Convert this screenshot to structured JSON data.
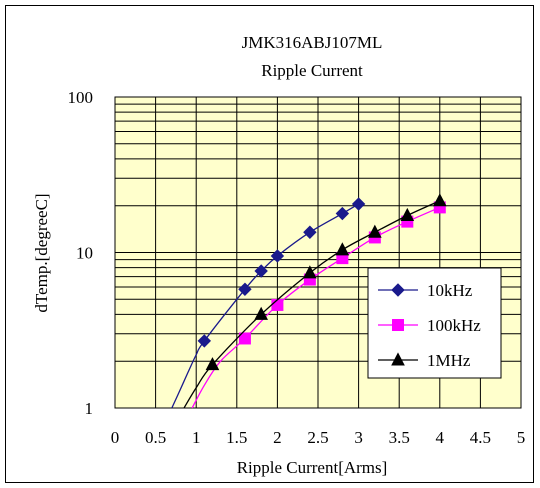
{
  "chart_data": {
    "type": "line",
    "title": "JMK316ABJ107ML",
    "subtitle": "Ripple Current",
    "xlabel": "Ripple Current[Arms]",
    "ylabel": "dTemp.[degreeC]",
    "xlim": [
      0,
      5
    ],
    "ylim": [
      1,
      100
    ],
    "yscale": "log",
    "x_ticks": [
      "0",
      "0.5",
      "1",
      "1.5",
      "2",
      "2.5",
      "3",
      "3.5",
      "4",
      "4.5",
      "5"
    ],
    "y_ticks": [
      "1",
      "10",
      "100"
    ],
    "grid": true,
    "legend_position": "lower-right",
    "plot_background": "#ffffcc",
    "series": [
      {
        "name": "10kHz",
        "marker": "diamond",
        "color": "#1a1a8c",
        "marker_color": "#1a1a8c",
        "line_color": "#1a1a8c",
        "x": [
          1.1,
          1.6,
          1.8,
          2.0,
          2.4,
          2.8,
          3.0
        ],
        "y": [
          2.7,
          5.8,
          7.6,
          9.5,
          13.5,
          17.8,
          20.5
        ],
        "curve_x": [
          0.7,
          0.8,
          0.9,
          1.0,
          1.1
        ],
        "curve_y": [
          1.0,
          1.3,
          1.7,
          2.2,
          2.7
        ]
      },
      {
        "name": "100kHz",
        "marker": "square",
        "color": "#ff00ff",
        "marker_color": "#ff00ff",
        "line_color": "#ff00ff",
        "x": [
          1.6,
          2.0,
          2.4,
          2.8,
          3.2,
          3.6,
          4.0
        ],
        "y": [
          2.8,
          4.6,
          6.7,
          9.2,
          12.5,
          15.8,
          19.5
        ],
        "curve_x": [
          0.95,
          1.1,
          1.3,
          1.6
        ],
        "curve_y": [
          1.0,
          1.4,
          2.0,
          2.8
        ]
      },
      {
        "name": "1MHz",
        "marker": "triangle",
        "color": "#000000",
        "marker_color": "#000000",
        "line_color": "#000000",
        "x": [
          1.2,
          1.8,
          2.4,
          2.8,
          3.2,
          3.6,
          4.0
        ],
        "y": [
          1.9,
          4.0,
          7.4,
          10.4,
          13.5,
          17.3,
          21.5
        ],
        "curve_x": [
          0.85,
          1.0,
          1.2
        ],
        "curve_y": [
          1.0,
          1.35,
          1.9
        ]
      }
    ]
  }
}
